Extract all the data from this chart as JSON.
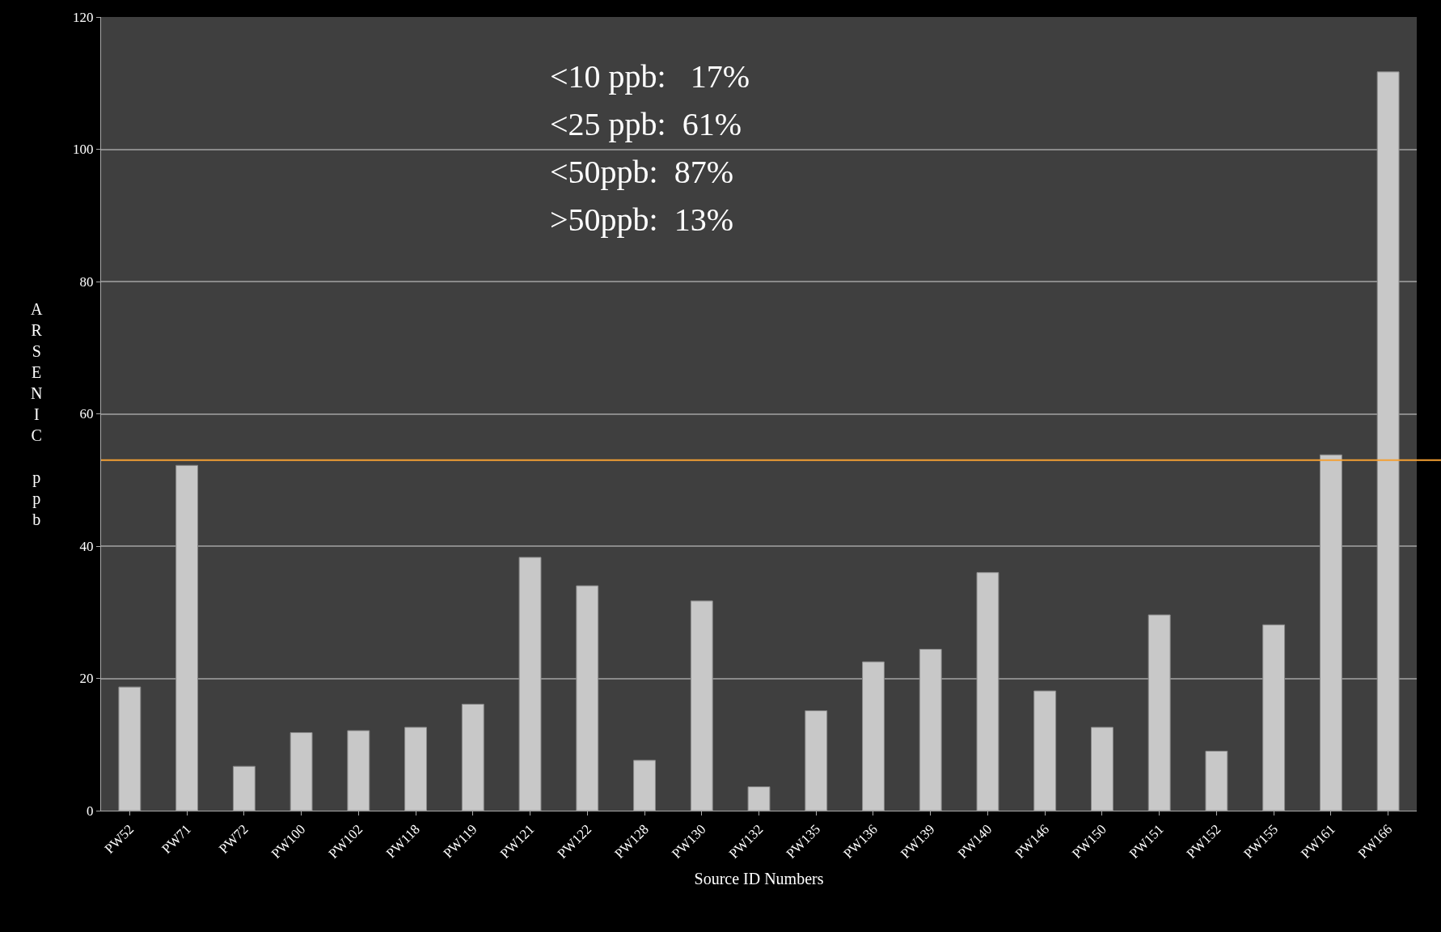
{
  "chart_data": {
    "type": "bar",
    "xlabel": "Source ID Numbers",
    "ylabel": "ARSENIC ppb",
    "categories": [
      "PW52",
      "PW71",
      "PW72",
      "PW100",
      "PW102",
      "PW118",
      "PW119",
      "PW121",
      "PW122",
      "PW128",
      "PW130",
      "PW132",
      "PW135",
      "PW136",
      "PW139",
      "PW140",
      "PW146",
      "PW150",
      "PW151",
      "PW152",
      "PW155",
      "PW161",
      "PW166"
    ],
    "values": [
      18.7,
      52.2,
      6.7,
      11.8,
      12.1,
      12.6,
      16.1,
      38.3,
      34.0,
      7.6,
      31.7,
      3.6,
      15.1,
      22.5,
      24.4,
      36.0,
      18.1,
      12.6,
      29.6,
      9.0,
      28.1,
      53.8,
      111.7
    ],
    "color": "#c8c8c8",
    "ylim": [
      0,
      120
    ],
    "yticks": [
      0,
      20,
      40,
      60,
      80,
      100,
      120
    ],
    "grid": "y",
    "ref_lines": [
      {
        "axis": "y",
        "value": 53,
        "color": "#f4a033"
      }
    ],
    "annotations": [
      "<10 ppb:   17%",
      "<25 ppb:  61%",
      "<50ppb:  87%",
      ">50ppb:  13%"
    ]
  }
}
